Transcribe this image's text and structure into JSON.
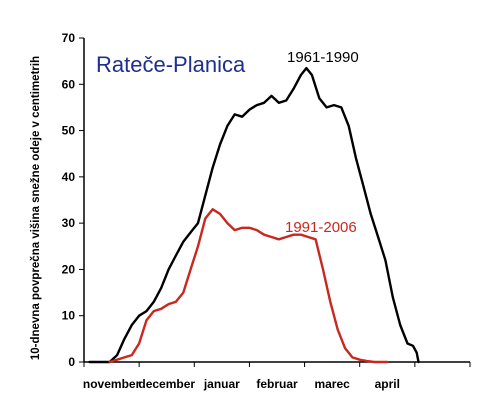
{
  "chart_data": {
    "type": "line",
    "title": "Rateče-Planica",
    "xlabel": "",
    "ylabel": "10-dnevna povprečna višina snežne odeje v centimetrih",
    "ylim": [
      0,
      70
    ],
    "yticks": [
      0,
      10,
      20,
      30,
      40,
      50,
      60,
      70
    ],
    "grid": false,
    "x_unit": "10-day periods from start of November",
    "xlim": [
      0,
      21
    ],
    "month_ticks": [
      {
        "label": "november",
        "x": 1.5
      },
      {
        "label": "december",
        "x": 4.5
      },
      {
        "label": "januar",
        "x": 7.5
      },
      {
        "label": "februar",
        "x": 10.5
      },
      {
        "label": "marec",
        "x": 13.5
      },
      {
        "label": "april",
        "x": 16.5
      }
    ],
    "series": [
      {
        "name": "1961-1990",
        "color": "#000000",
        "points": [
          [
            0.3,
            0
          ],
          [
            1.0,
            0
          ],
          [
            1.4,
            0
          ],
          [
            1.8,
            1.5
          ],
          [
            2.2,
            5
          ],
          [
            2.6,
            8
          ],
          [
            3.0,
            10
          ],
          [
            3.4,
            11
          ],
          [
            3.8,
            13
          ],
          [
            4.2,
            16
          ],
          [
            4.6,
            20
          ],
          [
            5.0,
            23
          ],
          [
            5.4,
            26
          ],
          [
            5.8,
            28
          ],
          [
            6.2,
            30
          ],
          [
            6.6,
            36
          ],
          [
            7.0,
            42
          ],
          [
            7.4,
            47
          ],
          [
            7.8,
            51
          ],
          [
            8.2,
            53.5
          ],
          [
            8.6,
            53
          ],
          [
            9.0,
            54.5
          ],
          [
            9.4,
            55.5
          ],
          [
            9.8,
            56
          ],
          [
            10.2,
            57.5
          ],
          [
            10.6,
            56
          ],
          [
            11.0,
            56.5
          ],
          [
            11.4,
            59
          ],
          [
            11.8,
            62
          ],
          [
            12.1,
            63.5
          ],
          [
            12.4,
            62
          ],
          [
            12.8,
            57
          ],
          [
            13.2,
            55
          ],
          [
            13.6,
            55.5
          ],
          [
            14.0,
            55
          ],
          [
            14.4,
            51
          ],
          [
            14.8,
            44
          ],
          [
            15.2,
            38
          ],
          [
            15.6,
            32
          ],
          [
            16.0,
            27
          ],
          [
            16.4,
            22
          ],
          [
            16.8,
            14
          ],
          [
            17.2,
            8
          ],
          [
            17.6,
            4
          ],
          [
            17.9,
            3.5
          ],
          [
            18.1,
            2
          ],
          [
            18.2,
            0
          ]
        ]
      },
      {
        "name": "1991-2006",
        "color": "#c8281e",
        "points": [
          [
            1.4,
            0
          ],
          [
            1.8,
            0.5
          ],
          [
            2.2,
            1
          ],
          [
            2.6,
            1.5
          ],
          [
            3.0,
            4
          ],
          [
            3.4,
            9
          ],
          [
            3.8,
            11
          ],
          [
            4.2,
            11.5
          ],
          [
            4.6,
            12.5
          ],
          [
            5.0,
            13
          ],
          [
            5.4,
            15
          ],
          [
            5.8,
            20
          ],
          [
            6.2,
            25
          ],
          [
            6.6,
            31
          ],
          [
            7.0,
            33
          ],
          [
            7.4,
            32
          ],
          [
            7.8,
            30
          ],
          [
            8.2,
            28.5
          ],
          [
            8.6,
            29
          ],
          [
            9.0,
            29
          ],
          [
            9.4,
            28.5
          ],
          [
            9.8,
            27.5
          ],
          [
            10.2,
            27
          ],
          [
            10.6,
            26.5
          ],
          [
            11.0,
            27
          ],
          [
            11.4,
            27.5
          ],
          [
            11.8,
            27.5
          ],
          [
            12.2,
            27
          ],
          [
            12.6,
            26.5
          ],
          [
            13.0,
            20
          ],
          [
            13.4,
            13
          ],
          [
            13.8,
            7
          ],
          [
            14.2,
            3
          ],
          [
            14.6,
            1
          ],
          [
            15.0,
            0.5
          ],
          [
            15.4,
            0.2
          ],
          [
            15.8,
            0
          ],
          [
            16.5,
            0
          ]
        ]
      }
    ]
  }
}
